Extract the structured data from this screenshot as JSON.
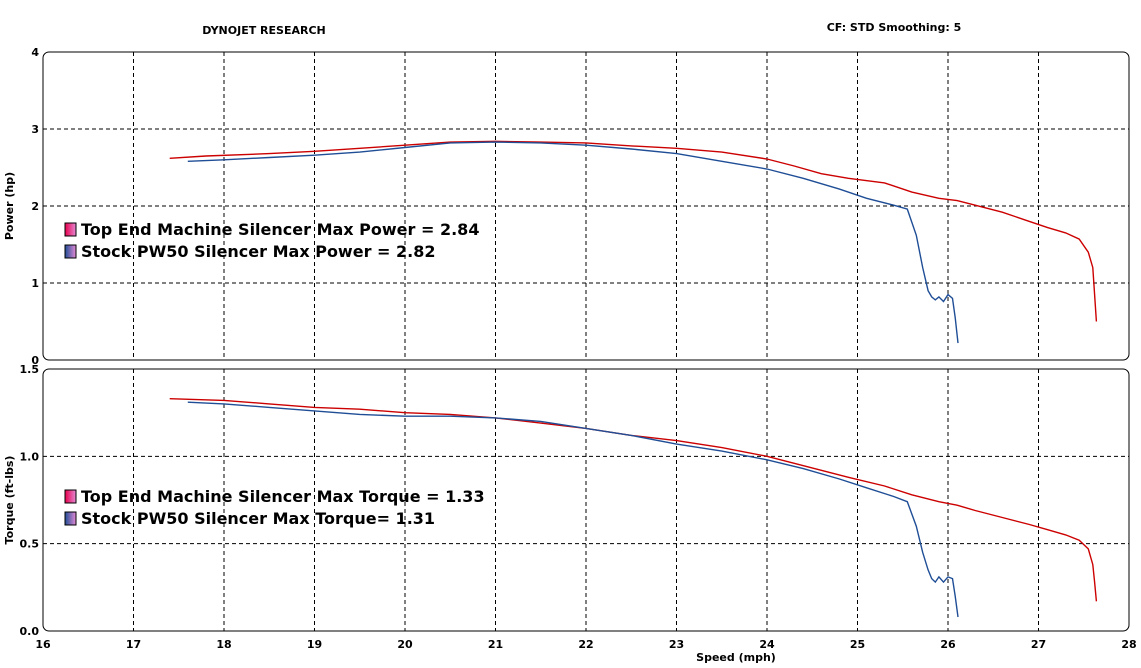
{
  "header": {
    "left": "DYNOJET RESEARCH",
    "right": "CF: STD  Smoothing: 5"
  },
  "chart_data": [
    {
      "type": "line",
      "panel": "power",
      "ylabel": "Power (hp)",
      "xlabel": "Speed (mph)",
      "xlim": [
        16,
        28
      ],
      "ylim": [
        0,
        4
      ],
      "xticks": [
        16,
        17,
        18,
        19,
        20,
        21,
        22,
        23,
        24,
        25,
        26,
        27,
        28
      ],
      "yticks": [
        0,
        1,
        2,
        3,
        4
      ],
      "ytick_labels": [
        "0",
        "1",
        "2",
        "3",
        "4"
      ],
      "grid": true,
      "legend_placement": "left-middle",
      "legend": [
        {
          "text": "Top End Machine Silencer Max Power = 2.84",
          "color": "#e8004c"
        },
        {
          "text": "Stock PW50 Silencer Max Power = 2.82",
          "color": "#1f4e96"
        }
      ],
      "series": [
        {
          "color": "#cc0000",
          "x": [
            17.4,
            17.8,
            18.5,
            19.0,
            19.5,
            20.0,
            20.5,
            21.0,
            21.5,
            22.0,
            22.5,
            23.0,
            23.5,
            24.0,
            24.3,
            24.6,
            24.9,
            25.3,
            25.6,
            25.9,
            26.1,
            26.3,
            26.6,
            26.9,
            27.1,
            27.3,
            27.45,
            27.55,
            27.6,
            27.62,
            27.64
          ],
          "y": [
            2.62,
            2.65,
            2.68,
            2.71,
            2.75,
            2.79,
            2.83,
            2.84,
            2.83,
            2.82,
            2.78,
            2.75,
            2.7,
            2.61,
            2.52,
            2.42,
            2.36,
            2.3,
            2.18,
            2.1,
            2.07,
            2.01,
            1.92,
            1.8,
            1.72,
            1.65,
            1.57,
            1.4,
            1.2,
            0.85,
            0.5
          ]
        },
        {
          "color": "#1f4e96",
          "x": [
            17.6,
            18.0,
            18.5,
            19.0,
            19.5,
            20.0,
            20.5,
            21.0,
            21.5,
            22.0,
            22.5,
            23.0,
            23.5,
            24.0,
            24.4,
            24.8,
            25.1,
            25.4,
            25.55,
            25.65,
            25.72,
            25.78,
            25.82,
            25.86,
            25.9,
            25.95,
            26.0,
            26.05,
            26.08,
            26.11
          ],
          "y": [
            2.58,
            2.6,
            2.63,
            2.66,
            2.7,
            2.76,
            2.82,
            2.83,
            2.82,
            2.79,
            2.74,
            2.68,
            2.58,
            2.48,
            2.36,
            2.22,
            2.1,
            2.01,
            1.96,
            1.62,
            1.2,
            0.9,
            0.82,
            0.78,
            0.82,
            0.76,
            0.85,
            0.8,
            0.55,
            0.22
          ]
        }
      ]
    },
    {
      "type": "line",
      "panel": "torque",
      "ylabel": "Torque (ft-lbs)",
      "xlabel": "Speed (mph)",
      "xlim": [
        16,
        28
      ],
      "ylim": [
        0,
        1.5
      ],
      "xticks": [
        16,
        17,
        18,
        19,
        20,
        21,
        22,
        23,
        24,
        25,
        26,
        27,
        28
      ],
      "yticks": [
        0,
        0.5,
        1.0,
        1.5
      ],
      "ytick_labels": [
        "0.0",
        "0.5",
        "1.0",
        "1.5"
      ],
      "grid": true,
      "legend_placement": "left-bottom",
      "legend": [
        {
          "text": "Top End Machine Silencer Max Torque = 1.33",
          "color": "#e8004c"
        },
        {
          "text": "Stock PW50 Silencer Max Torque= 1.31",
          "color": "#1f4e96"
        }
      ],
      "series": [
        {
          "color": "#cc0000",
          "x": [
            17.4,
            18.0,
            18.5,
            19.0,
            19.5,
            20.0,
            20.5,
            21.0,
            21.5,
            22.0,
            22.5,
            23.0,
            23.5,
            24.0,
            24.3,
            24.6,
            24.9,
            25.3,
            25.6,
            25.9,
            26.1,
            26.3,
            26.6,
            26.9,
            27.1,
            27.3,
            27.45,
            27.55,
            27.6,
            27.62,
            27.64
          ],
          "y": [
            1.33,
            1.32,
            1.3,
            1.28,
            1.27,
            1.25,
            1.24,
            1.22,
            1.19,
            1.16,
            1.12,
            1.09,
            1.05,
            1.0,
            0.96,
            0.92,
            0.88,
            0.83,
            0.78,
            0.74,
            0.72,
            0.69,
            0.65,
            0.61,
            0.58,
            0.55,
            0.52,
            0.47,
            0.38,
            0.28,
            0.17
          ]
        },
        {
          "color": "#1f4e96",
          "x": [
            17.6,
            18.0,
            18.5,
            19.0,
            19.5,
            20.0,
            20.5,
            21.0,
            21.5,
            22.0,
            22.5,
            23.0,
            23.5,
            24.0,
            24.4,
            24.8,
            25.1,
            25.4,
            25.55,
            25.65,
            25.72,
            25.78,
            25.82,
            25.86,
            25.9,
            25.95,
            26.0,
            26.05,
            26.08,
            26.11
          ],
          "y": [
            1.31,
            1.3,
            1.28,
            1.26,
            1.24,
            1.23,
            1.23,
            1.22,
            1.2,
            1.16,
            1.12,
            1.07,
            1.03,
            0.98,
            0.93,
            0.87,
            0.82,
            0.77,
            0.74,
            0.6,
            0.45,
            0.35,
            0.3,
            0.28,
            0.31,
            0.28,
            0.31,
            0.3,
            0.2,
            0.08
          ]
        }
      ]
    }
  ]
}
